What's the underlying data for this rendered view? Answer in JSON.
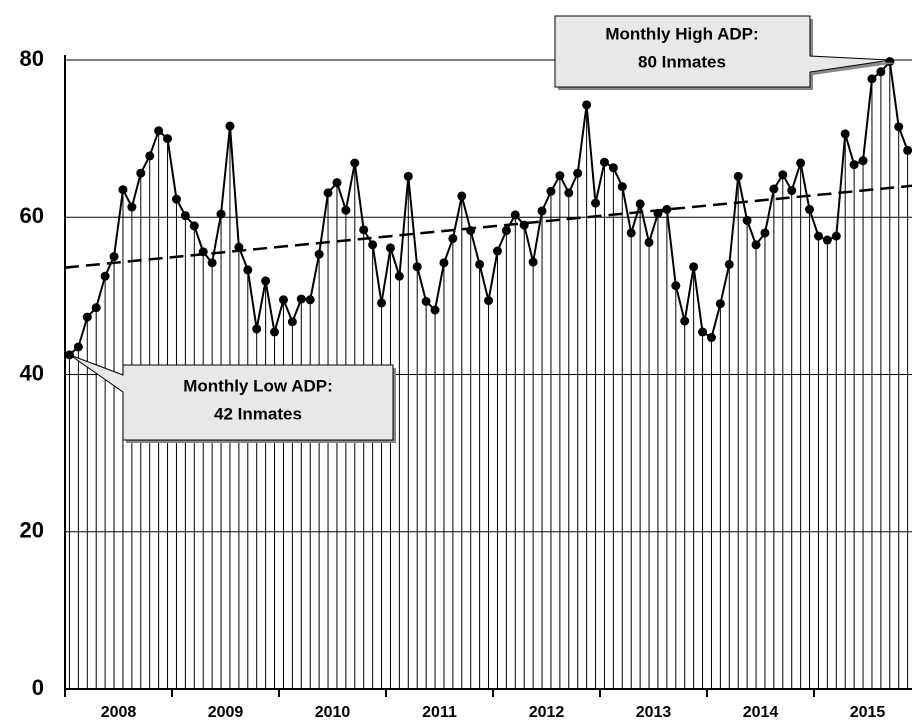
{
  "chart_data": {
    "type": "line",
    "year_labels": [
      "2008",
      "2009",
      "2010",
      "2011",
      "2012",
      "2013",
      "2014",
      "2015"
    ],
    "values": [
      42.5,
      43.5,
      47.3,
      48.5,
      52.5,
      55,
      63.5,
      61.3,
      65.6,
      67.8,
      71,
      70,
      62.3,
      60.2,
      58.9,
      55.6,
      54.2,
      60.4,
      71.6,
      56.2,
      53.3,
      45.8,
      51.9,
      45.4,
      49.5,
      46.7,
      49.6,
      49.5,
      55.3,
      63.1,
      64.4,
      60.9,
      66.9,
      58.4,
      56.5,
      49.1,
      56.1,
      52.5,
      65.2,
      53.7,
      49.3,
      48.2,
      54.2,
      57.3,
      62.7,
      58.3,
      54,
      49.4,
      55.7,
      58.3,
      60.3,
      59,
      54.3,
      60.8,
      63.3,
      65.3,
      63.1,
      65.6,
      74.3,
      61.8,
      67,
      66.3,
      63.9,
      58,
      61.7,
      56.8,
      60.5,
      61,
      51.3,
      46.8,
      53.7,
      45.4,
      44.7,
      49,
      54,
      65.2,
      59.6,
      56.5,
      58,
      63.6,
      65.4,
      63.4,
      66.9,
      61,
      57.6,
      57.1,
      57.6,
      70.6,
      66.7,
      67.2,
      77.6,
      78.5,
      79.8,
      71.5,
      68.5
    ],
    "color": "#000000",
    "trendline": [
      53.6,
      64
    ],
    "ylim": [
      0,
      80
    ],
    "yticks": [
      0,
      20,
      40,
      60,
      80
    ],
    "grid": true,
    "annotations": [
      {
        "lines": [
          "Monthly High ADP:",
          "80 Inmates"
        ]
      },
      {
        "lines": [
          "Monthly Low ADP:",
          "42 Inmates"
        ]
      }
    ]
  }
}
